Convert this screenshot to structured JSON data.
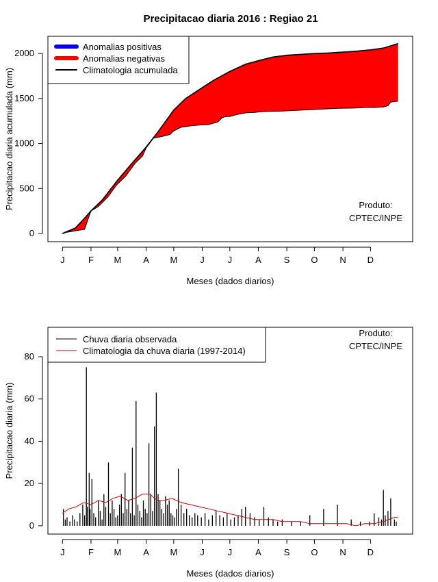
{
  "title": "Precipitacao diaria 2016 : Regiao 21",
  "colors": {
    "positive": "#0000ff",
    "negative": "#ff0000",
    "clim": "#000000",
    "daily": "#000000",
    "clim_daily": "#cc0000"
  },
  "chart_data": [
    {
      "type": "area",
      "name": "accumulated",
      "ylabel": "Precipitacao diaria acumulada (mm)",
      "xlabel": "Meses (dados diarios)",
      "xlim": [
        1,
        366
      ],
      "ylim": [
        0,
        2100
      ],
      "yticks": [
        0,
        500,
        1000,
        1500,
        2000
      ],
      "months": [
        "J",
        "F",
        "M",
        "A",
        "M",
        "J",
        "J",
        "A",
        "S",
        "O",
        "N",
        "D"
      ],
      "month_starts": [
        1,
        32,
        61,
        92,
        122,
        153,
        183,
        214,
        245,
        275,
        306,
        336
      ],
      "legend": [
        "Anomalias positivas",
        "Anomalias negativas",
        "Climatologia acumulada"
      ],
      "annotation": [
        "Produto:",
        "CPTEC/INPE"
      ],
      "series": [
        {
          "name": "Climatologia acumulada",
          "x": [
            1,
            15,
            25,
            32,
            45,
            60,
            75,
            92,
            105,
            122,
            135,
            153,
            165,
            183,
            200,
            214,
            230,
            245,
            260,
            275,
            290,
            306,
            320,
            336,
            350,
            366
          ],
          "values": [
            0,
            60,
            170,
            250,
            380,
            580,
            760,
            960,
            1130,
            1370,
            1500,
            1620,
            1700,
            1800,
            1880,
            1920,
            1960,
            1980,
            1990,
            2000,
            2005,
            2015,
            2025,
            2040,
            2060,
            2110
          ]
        },
        {
          "name": "Observado acumulado",
          "x": [
            1,
            5,
            10,
            15,
            20,
            25,
            28,
            32,
            40,
            50,
            60,
            70,
            80,
            88,
            92,
            100,
            110,
            118,
            122,
            130,
            140,
            150,
            160,
            170,
            175,
            180,
            183,
            190,
            200,
            210,
            214,
            220,
            240,
            260,
            280,
            300,
            320,
            330,
            340,
            350,
            355,
            358,
            366
          ],
          "values": [
            0,
            12,
            20,
            30,
            38,
            45,
            135,
            250,
            300,
            400,
            540,
            640,
            780,
            860,
            950,
            1060,
            1080,
            1100,
            1140,
            1180,
            1195,
            1205,
            1210,
            1240,
            1290,
            1300,
            1300,
            1320,
            1340,
            1345,
            1350,
            1355,
            1360,
            1370,
            1380,
            1390,
            1395,
            1400,
            1400,
            1405,
            1420,
            1460,
            1470
          ]
        }
      ]
    },
    {
      "type": "bar",
      "name": "daily",
      "ylabel": "Precipitacao diaria (mm)",
      "xlabel": "Meses (dados diarios)",
      "xlim": [
        1,
        366
      ],
      "ylim": [
        0,
        90
      ],
      "yticks": [
        0,
        20,
        40,
        60,
        80
      ],
      "months": [
        "J",
        "F",
        "M",
        "A",
        "M",
        "J",
        "J",
        "A",
        "S",
        "O",
        "N",
        "D"
      ],
      "month_starts": [
        1,
        32,
        61,
        92,
        122,
        153,
        183,
        214,
        245,
        275,
        306,
        336
      ],
      "legend": [
        "Chuva diaria observada",
        "Climatologia da chuva diaria (1997-2014)"
      ],
      "annotation": [
        "Produto:",
        "CPTEC/INPE"
      ],
      "series": [
        {
          "name": "Chuva diaria observada",
          "x": [
            2,
            4,
            6,
            9,
            12,
            14,
            17,
            20,
            23,
            25,
            27,
            28,
            30,
            31,
            33,
            35,
            37,
            40,
            42,
            44,
            46,
            48,
            51,
            53,
            55,
            57,
            59,
            61,
            63,
            65,
            67,
            69,
            71,
            73,
            75,
            77,
            79,
            81,
            83,
            85,
            87,
            89,
            91,
            93,
            95,
            97,
            99,
            101,
            103,
            105,
            107,
            109,
            111,
            113,
            115,
            117,
            119,
            121,
            123,
            125,
            127,
            130,
            133,
            136,
            139,
            142,
            145,
            148,
            152,
            156,
            160,
            164,
            168,
            172,
            176,
            180,
            184,
            188,
            192,
            196,
            200,
            205,
            210,
            215,
            220,
            225,
            230,
            235,
            240,
            250,
            260,
            270,
            285,
            300,
            315,
            325,
            335,
            340,
            345,
            348,
            350,
            352,
            355,
            358,
            362,
            364
          ],
          "values": [
            8,
            3,
            4,
            2,
            5,
            3,
            2,
            6,
            10,
            5,
            75,
            9,
            25,
            8,
            22,
            6,
            4,
            12,
            7,
            3,
            15,
            9,
            30,
            6,
            12,
            8,
            4,
            5,
            10,
            15,
            6,
            25,
            8,
            12,
            6,
            37,
            5,
            59,
            10,
            7,
            4,
            12,
            8,
            6,
            39,
            15,
            7,
            47,
            63,
            15,
            12,
            8,
            6,
            14,
            10,
            12,
            6,
            5,
            4,
            8,
            27,
            10,
            6,
            8,
            5,
            4,
            6,
            5,
            4,
            6,
            3,
            5,
            7,
            5,
            4,
            6,
            3,
            4,
            5,
            8,
            9,
            6,
            4,
            3,
            9,
            4,
            3,
            2,
            3,
            2,
            2,
            5,
            8,
            10,
            3,
            2,
            2,
            6,
            4,
            3,
            17,
            5,
            7,
            13,
            3,
            2
          ]
        },
        {
          "name": "Climatologia da chuva diaria (1997-2014)",
          "x": [
            1,
            8,
            16,
            24,
            32,
            40,
            48,
            56,
            64,
            72,
            80,
            88,
            96,
            104,
            112,
            120,
            130,
            140,
            150,
            160,
            170,
            180,
            190,
            200,
            210,
            220,
            230,
            240,
            250,
            260,
            270,
            280,
            290,
            300,
            310,
            320,
            330,
            340,
            350,
            356,
            362,
            366
          ],
          "values": [
            6,
            8,
            9,
            11,
            10,
            12,
            11,
            13,
            14,
            12,
            13,
            15,
            15,
            12,
            12,
            13,
            11,
            10,
            9,
            8,
            7,
            6,
            5,
            4,
            3,
            3,
            3,
            2,
            2,
            2,
            1,
            1,
            1,
            1,
            1,
            0,
            1,
            1,
            2,
            3,
            4,
            4
          ]
        }
      ]
    }
  ]
}
